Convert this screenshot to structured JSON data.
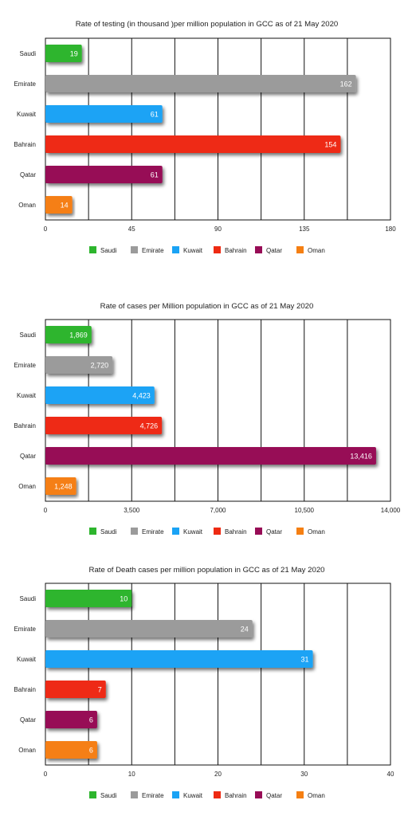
{
  "chart_data": [
    {
      "type": "bar",
      "orientation": "horizontal",
      "title": "Rate of testing (in thousand )per million population in GCC as of 21 May 2020",
      "categories": [
        "Saudi",
        "Emirate",
        "Kuwait",
        "Bahrain",
        "Qatar",
        "Oman"
      ],
      "values": [
        19,
        162,
        61,
        154,
        61,
        14
      ],
      "value_labels": [
        "19",
        "162",
        "61",
        "154",
        "61",
        "14"
      ],
      "xlim": [
        0,
        180
      ],
      "ticks": [
        0,
        45,
        90,
        135,
        180
      ],
      "tick_labels": [
        "0",
        "45",
        "90",
        "135",
        "180"
      ],
      "colors": [
        "#2db52d",
        "#9b9b9b",
        "#1aa3f5",
        "#ee2a12",
        "#970c56",
        "#f57f12"
      ],
      "legend": [
        "Saudi",
        "Emirate",
        "Kuwait",
        "Bahrain",
        "Qatar",
        "Oman"
      ],
      "legend_position": "bottom",
      "grid": true
    },
    {
      "type": "bar",
      "orientation": "horizontal",
      "title": "Rate of cases per Million population in  GCC as of 21 May 2020",
      "categories": [
        "Saudi",
        "Emirate",
        "Kuwait",
        "Bahrain",
        "Qatar",
        "Oman"
      ],
      "values": [
        1869,
        2720,
        4423,
        4726,
        13416,
        1248
      ],
      "value_labels": [
        "1,869",
        "2,720",
        "4,423",
        "4,726",
        "13,416",
        "1,248"
      ],
      "xlim": [
        0,
        14000
      ],
      "ticks": [
        0,
        3500,
        7000,
        10500,
        14000
      ],
      "tick_labels": [
        "0",
        "3,500",
        "7,000",
        "10,500",
        "14,000"
      ],
      "colors": [
        "#2db52d",
        "#9b9b9b",
        "#1aa3f5",
        "#ee2a12",
        "#970c56",
        "#f57f12"
      ],
      "legend": [
        "Saudi",
        "Emirate",
        "Kuwait",
        "Bahrain",
        "Qatar",
        "Oman"
      ],
      "legend_position": "bottom",
      "grid": true
    },
    {
      "type": "bar",
      "orientation": "horizontal",
      "title": "Rate of Death cases per million population in GCC as of 21 May 2020",
      "categories": [
        "Saudi",
        "Emirate",
        "Kuwait",
        "Bahrain",
        "Qatar",
        "Oman"
      ],
      "values": [
        10,
        24,
        31,
        7,
        6,
        6
      ],
      "value_labels": [
        "10",
        "24",
        "31",
        "7",
        "6",
        "6"
      ],
      "xlim": [
        0,
        40
      ],
      "ticks": [
        0,
        10,
        20,
        30,
        40
      ],
      "tick_labels": [
        "0",
        "10",
        "20",
        "30",
        "40"
      ],
      "colors": [
        "#2db52d",
        "#9b9b9b",
        "#1aa3f5",
        "#ee2a12",
        "#970c56",
        "#f57f12"
      ],
      "legend": [
        "Saudi",
        "Emirate",
        "Kuwait",
        "Bahrain",
        "Qatar",
        "Oman"
      ],
      "legend_position": "bottom",
      "grid": true
    }
  ]
}
